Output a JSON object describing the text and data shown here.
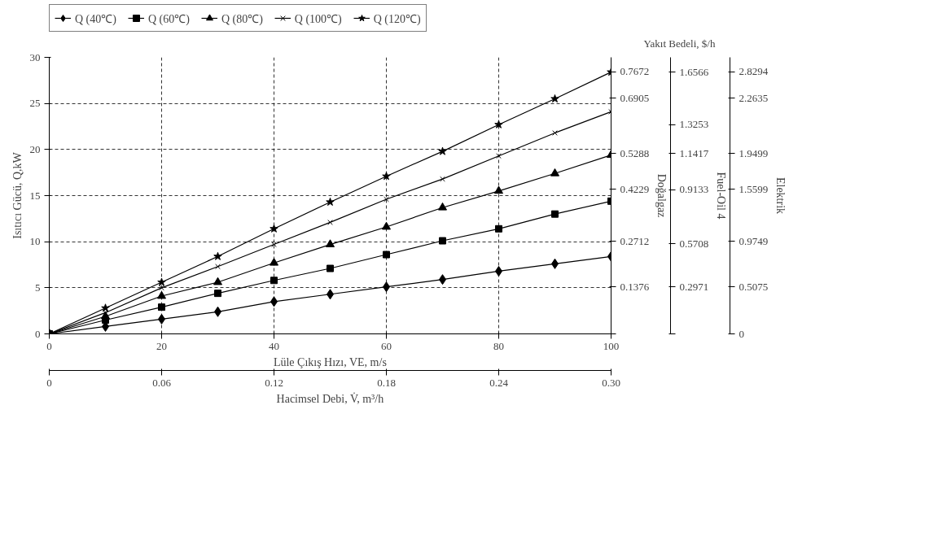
{
  "chart_data": {
    "type": "line",
    "xlabel": "Lüle Çıkış Hızı, VE, m/s",
    "ylabel": "Isıtıcı Gücü, Q,kW",
    "x2label": "Hacimsel Debi, V̇, m³/h",
    "y2label": "Doğalgaz",
    "y3label": "Fuel-Oil 4",
    "annotations": [
      "Yakıt Bedeli, $/h",
      "Elektrik",
      "0",
      "0.5075",
      "0.9749",
      "1.5599",
      "1.9499",
      "2.2635",
      "2.8294"
    ],
    "x": [
      0,
      10,
      20,
      30,
      40,
      50,
      60,
      70,
      80,
      90,
      100
    ],
    "xlim": [
      0,
      100
    ],
    "xticks": [
      0,
      20,
      40,
      60,
      80,
      100
    ],
    "ylim": [
      0,
      30
    ],
    "yticks": [
      0,
      5,
      10,
      15,
      20,
      25,
      30
    ],
    "x2lim": [
      0,
      0.3
    ],
    "x2ticks": [
      0,
      0.06,
      0.12,
      0.18,
      0.24,
      {
        "value": 0.3,
        "label": "0.30"
      }
    ],
    "y2lim": [
      0,
      0.81
    ],
    "y2ticks": [
      {
        "value": 0,
        "label": null
      },
      0.1376,
      0.2712,
      0.4229,
      0.5288,
      0.6905,
      0.7672
    ],
    "y3lim": [
      0,
      1.75
    ],
    "y3ticks": [
      {
        "value": 0,
        "label": null
      },
      0.2971,
      0.5708,
      0.9133,
      1.1417,
      1.3253,
      1.6566
    ],
    "grid": true,
    "legend": "top",
    "line_style": "solid",
    "series": [
      {
        "name": "Q (40℃)",
        "color": "#000000",
        "marker": "diamond",
        "values": [
          0,
          0.8,
          1.6,
          2.4,
          3.5,
          4.3,
          5.1,
          5.9,
          6.8,
          7.6,
          8.4
        ]
      },
      {
        "name": "Q (60℃)",
        "color": "#000000",
        "marker": "square",
        "values": [
          0,
          1.5,
          2.9,
          4.4,
          5.8,
          7.1,
          8.6,
          10.1,
          11.4,
          13,
          14.4
        ]
      },
      {
        "name": "Q (80℃)",
        "color": "#000000",
        "marker": "triangle",
        "values": [
          0,
          1.9,
          4.1,
          5.6,
          7.7,
          9.7,
          11.6,
          13.7,
          15.5,
          17.4,
          19.4
        ]
      },
      {
        "name": "Q (100℃)",
        "color": "#000000",
        "marker": "cross",
        "values": [
          0,
          2.3,
          5,
          7.3,
          9.7,
          12.1,
          14.6,
          16.8,
          19.3,
          21.8,
          24.1
        ]
      },
      {
        "name": "Q (120℃)",
        "color": "#000000",
        "marker": "star",
        "values": [
          0,
          2.8,
          5.6,
          8.4,
          11.4,
          14.3,
          17.1,
          19.8,
          22.7,
          25.5,
          28.4
        ]
      }
    ]
  }
}
